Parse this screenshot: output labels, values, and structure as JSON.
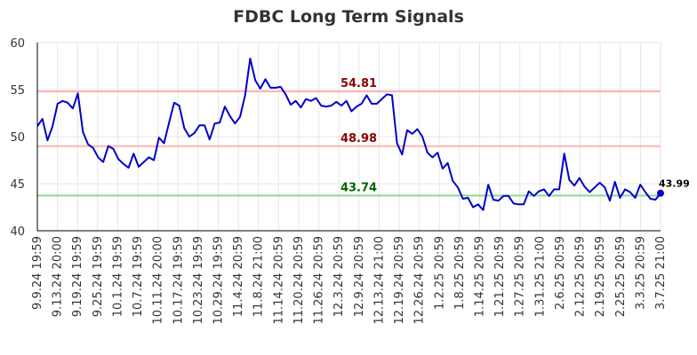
{
  "chart_data": {
    "type": "line",
    "title": "FDBC Long Term Signals",
    "xlabel": "",
    "ylabel": "",
    "ylim": [
      40,
      60
    ],
    "yticks": [
      40,
      45,
      50,
      55,
      60
    ],
    "grid": true,
    "x_tick_labels": [
      "9.9.24 19:59",
      "9.13.24 20:00",
      "9.19.24 19:59",
      "9.25.24 19:59",
      "10.1.24 19:59",
      "10.7.24 19:59",
      "10.11.24 20:00",
      "10.17.24 19:59",
      "10.23.24 19:59",
      "10.29.24 19:59",
      "11.4.24 20:59",
      "11.8.24 21:00",
      "11.14.24 20:59",
      "11.20.24 20:59",
      "11.26.24 20:59",
      "12.3.24 20:59",
      "12.9.24 20:59",
      "12.13.24 21:00",
      "12.19.24 20:59",
      "12.26.24 20:59",
      "1.2.25 20:59",
      "1.8.25 20:59",
      "1.14.25 20:59",
      "1.21.25 20:59",
      "1.27.25 20:59",
      "1.31.25 21:00",
      "2.6.25 20:59",
      "2.12.25 20:59",
      "2.19.25 20:59",
      "2.25.25 20:59",
      "3.3.25 20:59",
      "3.7.25 21:00"
    ],
    "reference_lines": [
      {
        "value": 54.81,
        "label": "54.81",
        "color": "#ffb3b3",
        "label_color": "#8b0000"
      },
      {
        "value": 48.98,
        "label": "48.98",
        "color": "#ffb3b3",
        "label_color": "#8b0000"
      },
      {
        "value": 43.74,
        "label": "43.74",
        "color": "#90d890",
        "label_color": "#006400"
      }
    ],
    "series": [
      {
        "color": "#0000cc",
        "values": [
          51.1,
          51.9,
          49.6,
          51.1,
          53.5,
          53.8,
          53.6,
          53.0,
          54.6,
          50.5,
          49.2,
          48.8,
          47.8,
          47.3,
          49.0,
          48.7,
          47.6,
          47.1,
          46.7,
          48.2,
          46.8,
          47.3,
          47.8,
          47.5,
          49.9,
          49.3,
          51.5,
          53.6,
          53.3,
          50.9,
          50.0,
          50.4,
          51.2,
          51.2,
          49.7,
          51.4,
          51.5,
          53.2,
          52.2,
          51.4,
          52.1,
          54.4,
          58.3,
          56.0,
          55.1,
          56.1,
          55.2,
          55.2,
          55.3,
          54.5,
          53.4,
          53.8,
          53.1,
          54.0,
          53.8,
          54.1,
          53.3,
          53.2,
          53.3,
          53.7,
          53.3,
          53.8,
          52.7,
          53.2,
          53.5,
          54.4,
          53.5,
          53.5,
          54.0,
          54.5,
          54.4,
          49.3,
          48.1,
          50.7,
          50.3,
          50.8,
          50.0,
          48.3,
          47.8,
          48.3,
          46.6,
          47.2,
          45.3,
          44.6,
          43.4,
          43.5,
          42.5,
          42.8,
          42.2,
          44.9,
          43.3,
          43.2,
          43.7,
          43.7,
          42.9,
          42.8,
          42.8,
          44.2,
          43.7,
          44.2,
          44.4,
          43.7,
          44.4,
          44.4,
          48.2,
          45.4,
          44.8,
          45.6,
          44.7,
          44.1,
          44.6,
          45.1,
          44.6,
          43.2,
          45.2,
          43.5,
          44.4,
          44.1,
          43.5,
          44.9,
          44.1,
          43.4,
          43.3,
          43.99
        ]
      }
    ],
    "last_value_label": "43.99"
  }
}
